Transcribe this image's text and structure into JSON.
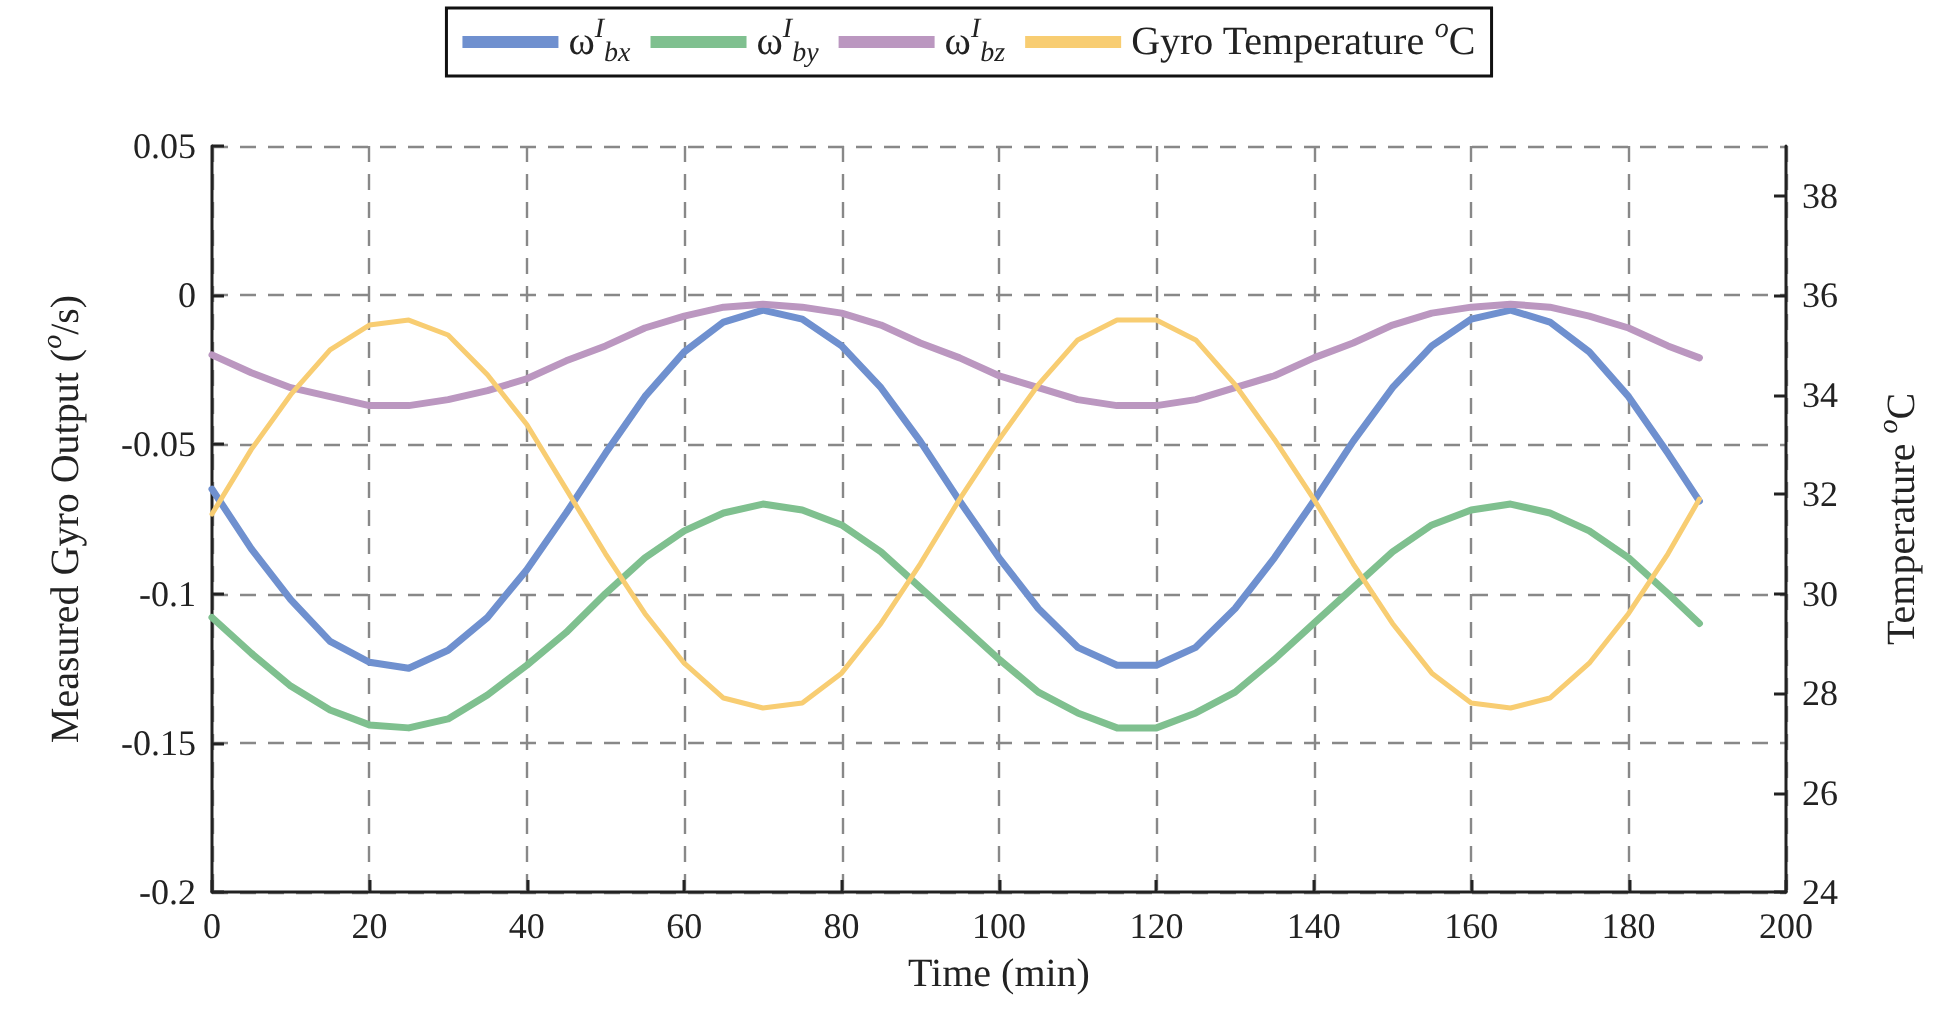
{
  "chart_data": {
    "type": "line",
    "xlabel": "Time (min)",
    "ylabel": "Measured Gyro Output ($^{o}$/s)",
    "y2label": "Temperature $^{o}$C",
    "x": [
      0,
      5,
      10,
      15,
      20,
      25,
      30,
      35,
      40,
      45,
      50,
      55,
      60,
      65,
      70,
      75,
      80,
      85,
      90,
      95,
      100,
      105,
      110,
      115,
      120,
      125,
      130,
      135,
      140,
      145,
      150,
      155,
      160,
      165,
      170,
      175,
      180,
      185,
      189
    ],
    "series": [
      {
        "name": "ω$^{I}$$_{bx}$",
        "color": "#6f90cf",
        "values": [
          -0.065,
          -0.085,
          -0.102,
          -0.116,
          -0.123,
          -0.125,
          -0.119,
          -0.108,
          -0.092,
          -0.073,
          -0.053,
          -0.034,
          -0.019,
          -0.009,
          -0.005,
          -0.008,
          -0.017,
          -0.031,
          -0.049,
          -0.069,
          -0.088,
          -0.105,
          -0.118,
          -0.124,
          -0.124,
          -0.118,
          -0.105,
          -0.088,
          -0.069,
          -0.049,
          -0.031,
          -0.017,
          -0.008,
          -0.005,
          -0.009,
          -0.019,
          -0.034,
          -0.053,
          -0.069
        ]
      },
      {
        "name": "ω$^{I}$$_{by}$",
        "color": "#7fc08f",
        "values": [
          -0.108,
          -0.12,
          -0.131,
          -0.139,
          -0.144,
          -0.145,
          -0.142,
          -0.134,
          -0.124,
          -0.113,
          -0.1,
          -0.088,
          -0.079,
          -0.073,
          -0.07,
          -0.072,
          -0.077,
          -0.086,
          -0.098,
          -0.11,
          -0.122,
          -0.133,
          -0.14,
          -0.145,
          -0.145,
          -0.14,
          -0.133,
          -0.122,
          -0.11,
          -0.098,
          -0.086,
          -0.077,
          -0.072,
          -0.07,
          -0.073,
          -0.079,
          -0.088,
          -0.1,
          -0.11
        ]
      },
      {
        "name": "ω$^{I}$$_{bz}$",
        "color": "#bb97c0",
        "values": [
          -0.02,
          -0.026,
          -0.031,
          -0.034,
          -0.037,
          -0.037,
          -0.035,
          -0.032,
          -0.028,
          -0.022,
          -0.017,
          -0.011,
          -0.007,
          -0.004,
          -0.003,
          -0.004,
          -0.006,
          -0.01,
          -0.016,
          -0.021,
          -0.027,
          -0.031,
          -0.035,
          -0.037,
          -0.037,
          -0.035,
          -0.031,
          -0.027,
          -0.021,
          -0.016,
          -0.01,
          -0.006,
          -0.004,
          -0.003,
          -0.004,
          -0.007,
          -0.011,
          -0.017,
          -0.021
        ]
      },
      {
        "name": "Gyro Temperature $^{o}$C",
        "color": "#f8cd72",
        "axis": "y2",
        "values": [
          31.6,
          32.9,
          34.0,
          34.9,
          35.4,
          35.5,
          35.2,
          34.4,
          33.4,
          32.1,
          30.8,
          29.6,
          28.6,
          27.9,
          27.7,
          27.8,
          28.4,
          29.4,
          30.6,
          31.9,
          33.1,
          34.2,
          35.1,
          35.5,
          35.5,
          35.1,
          34.2,
          33.1,
          31.9,
          30.6,
          29.4,
          28.4,
          27.8,
          27.7,
          27.9,
          28.6,
          29.6,
          30.8,
          31.9
        ]
      }
    ],
    "xlim": [
      0,
      200
    ],
    "xticks": [
      0,
      20,
      40,
      60,
      80,
      100,
      120,
      140,
      160,
      180,
      200
    ],
    "ylim": [
      -0.2,
      0.05
    ],
    "yticks": [
      -0.2,
      -0.15,
      -0.1,
      -0.05,
      0,
      0.05
    ],
    "y2lim": [
      24,
      39
    ],
    "y2ticks": [
      24,
      26,
      28,
      30,
      32,
      34,
      36,
      38
    ],
    "grid": true,
    "legend": "top",
    "marker": "none",
    "line_style": "solid"
  }
}
